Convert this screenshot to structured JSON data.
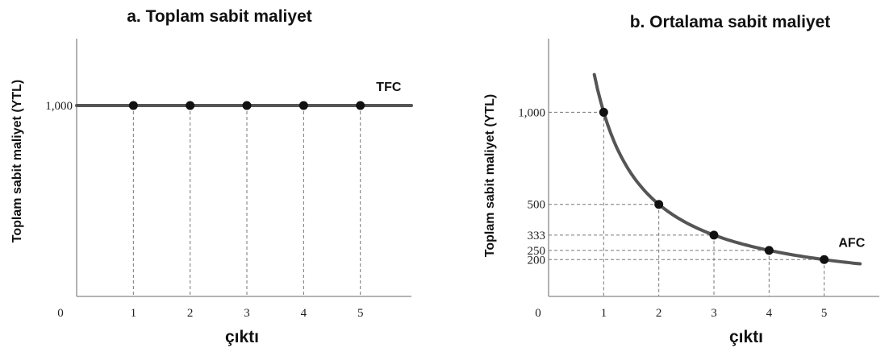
{
  "chart_data": [
    {
      "type": "line",
      "title": "a. Toplam sabit maliyet",
      "xlabel": "çıktı",
      "ylabel": "Toplam sabit maliyet (YTL)",
      "origin_label": "0",
      "x": [
        1,
        2,
        3,
        4,
        5
      ],
      "x_tick_labels": [
        "1",
        "2",
        "3",
        "4",
        "5"
      ],
      "y_tick_labels": [
        "1,000"
      ],
      "y_ticks": [
        1000
      ],
      "xlim": [
        0,
        5.9
      ],
      "ylim": [
        0,
        1350
      ],
      "series": [
        {
          "name": "TFC",
          "values": [
            1000,
            1000,
            1000,
            1000,
            1000
          ]
        }
      ],
      "grid": false
    },
    {
      "type": "line",
      "title": "b. Ortalama sabit maliyet",
      "xlabel": "çıktı",
      "ylabel": "Toplam sabit maliyet (YTL)",
      "origin_label": "0",
      "x": [
        1,
        2,
        3,
        4,
        5
      ],
      "x_tick_labels": [
        "1",
        "2",
        "3",
        "4",
        "5"
      ],
      "y_tick_labels": [
        "1,000",
        "500",
        "333",
        "250",
        "200"
      ],
      "y_ticks": [
        1000,
        500,
        333,
        250,
        200
      ],
      "xlim": [
        0,
        6
      ],
      "ylim": [
        0,
        1400
      ],
      "series": [
        {
          "name": "AFC",
          "values": [
            1000,
            500,
            333,
            250,
            200
          ]
        }
      ],
      "grid": false
    }
  ]
}
